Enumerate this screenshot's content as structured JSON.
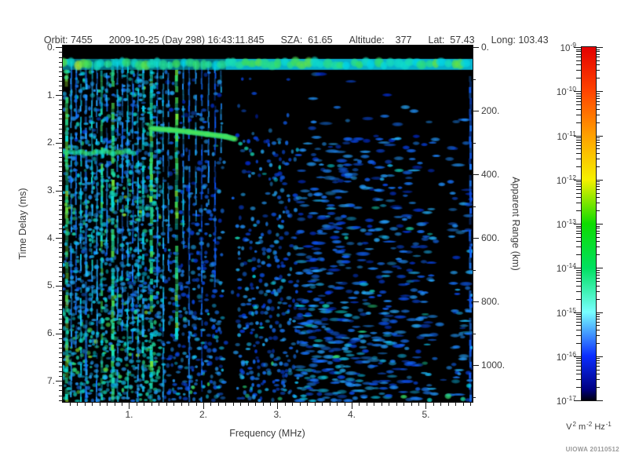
{
  "header": {
    "orbit": "Orbit: 7455",
    "datetime": "2009-10-25 (Day 298) 16:43:11.845",
    "sza": "SZA:  61.65",
    "altitude": "Altitude:    377",
    "lat": "Lat:  57.43",
    "long": "Long: 103.43"
  },
  "watermark": "UIOWA 20110512",
  "chart_data": {
    "type": "heatmap",
    "title": "",
    "xlabel": "Frequency (MHz)",
    "ylabel_left": "Time Delay (ms)",
    "ylabel_right": "Apparent Range (km)",
    "x_range": [
      0.106,
      5.63
    ],
    "y_range": [
      -0.04,
      7.44
    ],
    "x_major_ticks": [
      1,
      2,
      3,
      4,
      5
    ],
    "x_major_labels": [
      "1.",
      "2.",
      "3.",
      "4.",
      "5."
    ],
    "x_minor_step": 0.1,
    "y_major_ticks": [
      0,
      1,
      2,
      3,
      4,
      5,
      6,
      7
    ],
    "y_major_labels": [
      "0.",
      "1.",
      "2.",
      "3.",
      "4.",
      "5.",
      "6.",
      "7."
    ],
    "y_minor_step": 0.1,
    "right_axis": {
      "ticks": [
        0,
        200,
        400,
        600,
        800,
        1000
      ],
      "labels": [
        "0.",
        "200.",
        "400.",
        "600.",
        "800.",
        "1000."
      ],
      "minor_ticks": [
        100,
        300,
        500,
        700,
        900,
        1100
      ],
      "km_per_ms": 149.896
    },
    "colorbar": {
      "exponents": [
        -9,
        -10,
        -11,
        -12,
        -13,
        -14,
        -15,
        -16,
        -17
      ],
      "base": "10",
      "unit_parts": [
        {
          "t": "V",
          "sup": false
        },
        {
          "t": "2",
          "sup": true
        },
        {
          "t": " m",
          "sup": false
        },
        {
          "t": "-2",
          "sup": true
        },
        {
          "t": " Hz",
          "sup": false
        },
        {
          "t": "-1",
          "sup": true
        }
      ],
      "gradient": [
        [
          "0%",
          "#e30000"
        ],
        [
          "12.5%",
          "#ff4400"
        ],
        [
          "25%",
          "#ffa000"
        ],
        [
          "37.5%",
          "#f6f000"
        ],
        [
          "50%",
          "#0edc00"
        ],
        [
          "62.5%",
          "#00e060"
        ],
        [
          "75%",
          "#78ffff"
        ],
        [
          "87.5%",
          "#0a2cff"
        ],
        [
          "97%",
          "#000080"
        ],
        [
          "100%",
          "#000010"
        ]
      ]
    },
    "colormap_stops": [
      [
        0.0,
        "#000008"
      ],
      [
        0.18,
        "#020278"
      ],
      [
        0.34,
        "#0028dc"
      ],
      [
        0.5,
        "#146eff"
      ],
      [
        0.62,
        "#28aaff"
      ],
      [
        0.72,
        "#00d7eb"
      ],
      [
        0.8,
        "#1ee1aa"
      ],
      [
        0.88,
        "#3ce15a"
      ],
      [
        0.94,
        "#82e632"
      ],
      [
        1.0,
        "#e6e61e"
      ]
    ],
    "features": {
      "seed": 20110512,
      "top_black_time": 0.2,
      "transmit_band": {
        "t_center": 0.34,
        "t_range": [
          0.24,
          0.47
        ]
      },
      "ionosphere_trace": {
        "points": [
          [
            1.3,
            1.7
          ],
          [
            1.55,
            1.73
          ],
          [
            1.8,
            1.77
          ],
          [
            2.05,
            1.82
          ],
          [
            2.3,
            1.87
          ],
          [
            2.42,
            1.92
          ]
        ],
        "tail": [
          [
            2.5,
            2.02
          ],
          [
            2.58,
            2.12
          ],
          [
            2.66,
            2.24
          ]
        ]
      },
      "left_horizontal_band": {
        "f_range": [
          0.106,
          1.08
        ],
        "t_center": 2.2
      },
      "quiet_bands_mhz": [
        [
          2.27,
          2.47
        ],
        [
          5.13,
          5.32
        ]
      ],
      "vertical_streaks": [
        [
          0.16,
          4,
          0.9,
          0.24,
          7.45
        ],
        [
          0.22,
          2,
          0.62,
          0.3,
          7.45
        ],
        [
          0.285,
          2,
          0.55,
          0.3,
          6.2
        ],
        [
          0.35,
          2,
          0.7,
          0.3,
          7.45
        ],
        [
          0.42,
          3,
          0.6,
          0.3,
          7.45
        ],
        [
          0.5,
          2,
          0.72,
          0.3,
          5.6
        ],
        [
          0.565,
          2,
          0.62,
          0.3,
          7.45
        ],
        [
          0.63,
          3,
          0.85,
          0.25,
          7.45
        ],
        [
          0.7,
          2,
          0.6,
          0.3,
          4.4
        ],
        [
          0.78,
          4,
          0.88,
          0.24,
          7.45
        ],
        [
          0.845,
          2,
          0.65,
          0.3,
          7.45
        ],
        [
          0.91,
          2,
          0.58,
          0.3,
          5.9
        ],
        [
          0.98,
          2,
          0.7,
          0.3,
          7.45
        ],
        [
          1.05,
          2,
          0.55,
          0.3,
          6.6
        ],
        [
          1.12,
          2,
          0.66,
          0.3,
          7.45
        ],
        [
          1.19,
          3,
          0.72,
          0.3,
          7.45
        ],
        [
          1.3,
          4,
          0.87,
          0.24,
          7.45
        ],
        [
          1.38,
          2,
          0.6,
          0.3,
          5.2
        ],
        [
          1.46,
          2,
          0.68,
          0.3,
          7.45
        ],
        [
          1.53,
          2,
          0.62,
          0.3,
          4.6
        ],
        [
          1.64,
          4,
          0.88,
          0.24,
          6.3
        ],
        [
          1.73,
          2,
          0.66,
          0.3,
          4.2
        ],
        [
          1.81,
          2,
          0.55,
          0.3,
          7.45
        ],
        [
          1.9,
          2,
          0.63,
          0.3,
          3.6
        ],
        [
          1.98,
          2,
          0.52,
          0.3,
          7.45
        ],
        [
          2.07,
          2,
          0.6,
          0.3,
          3.2
        ],
        [
          2.16,
          2,
          0.5,
          0.3,
          5.0
        ],
        [
          2.24,
          2,
          0.62,
          0.25,
          2.2
        ],
        [
          5.6,
          3,
          0.5,
          0.6,
          7.45
        ]
      ],
      "edge_blobs": [
        [
          5.3,
          7.32,
          0.85,
          5
        ],
        [
          5.5,
          7.38,
          0.8,
          4
        ],
        [
          5.58,
          7.1,
          0.72,
          4
        ],
        [
          5.05,
          7.4,
          0.75,
          4
        ],
        [
          5.62,
          6.3,
          0.66,
          3
        ],
        [
          5.62,
          5.2,
          0.62,
          3
        ],
        [
          5.45,
          6.85,
          0.6,
          3
        ]
      ],
      "noise": {
        "cell": 6,
        "base": 0.14,
        "bottom_boost": 0.52,
        "left_f_max": 1.45,
        "left_base": 0.55,
        "left_bottom_boost": 0.3,
        "right_falloff_start": 3.5,
        "right_falloff_amount": 0.55,
        "sparse_top_f": 2.26,
        "sparse_top_t": 1.9,
        "sparse_top_factor": 0.35,
        "quiet_factor": 0.1
      }
    }
  }
}
